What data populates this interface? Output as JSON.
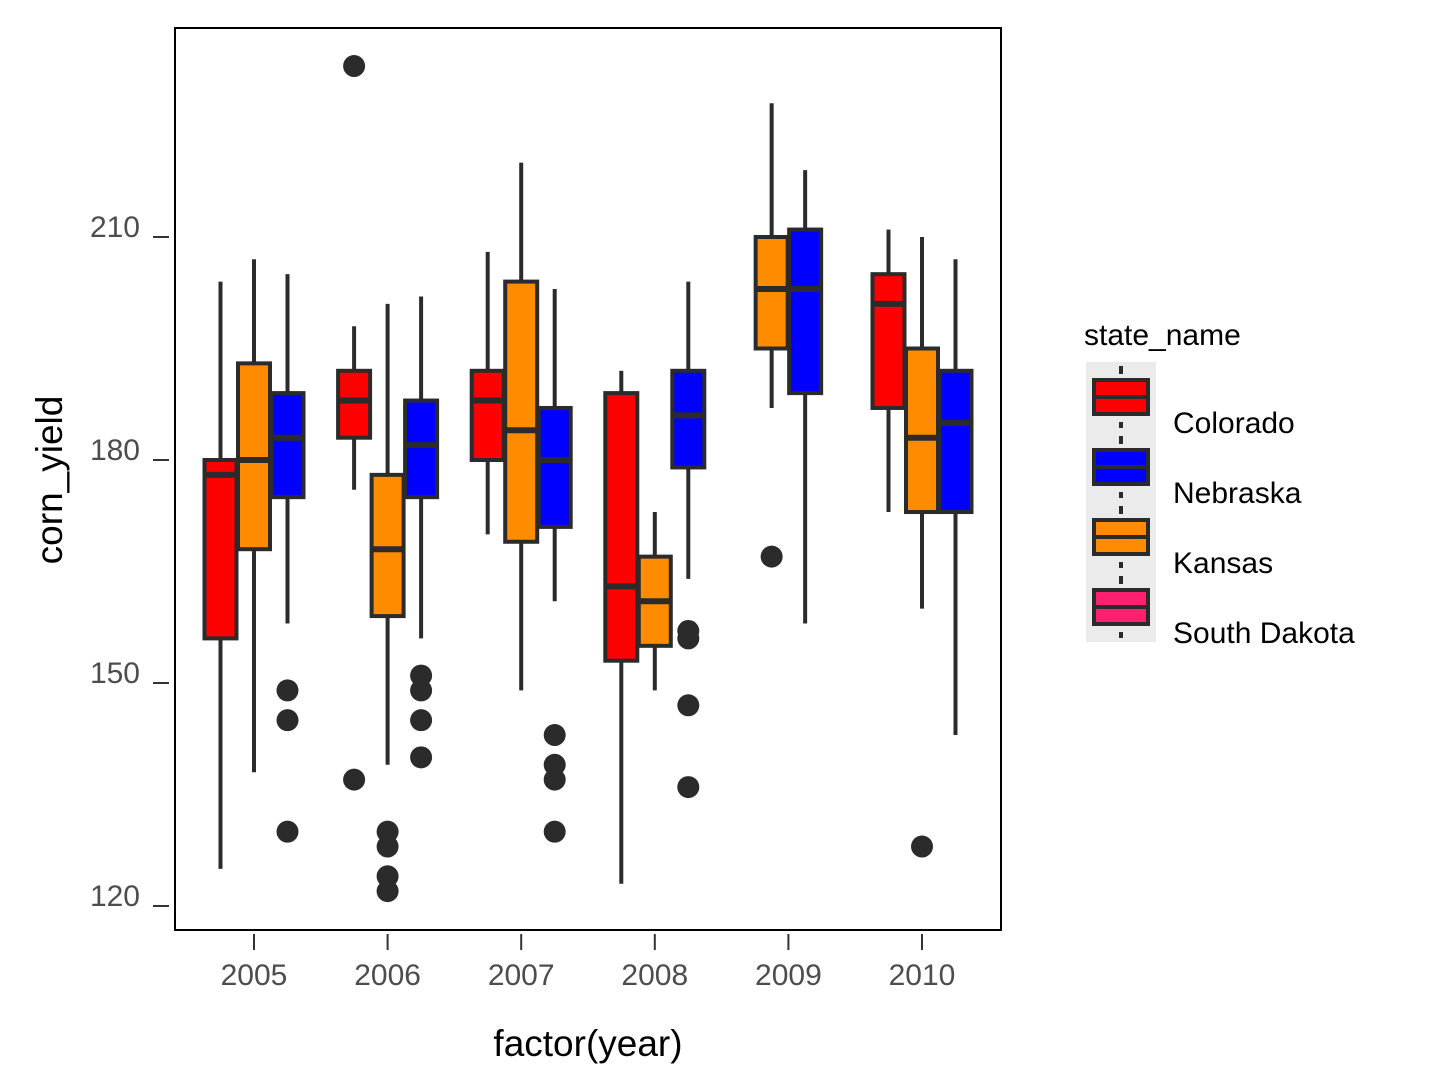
{
  "chart_data": {
    "type": "boxplot",
    "xlabel": "factor(year)",
    "ylabel": "corn_yield",
    "ylim": [
      117,
      238
    ],
    "yticks": [
      120,
      150,
      180,
      210
    ],
    "categories": [
      "2005",
      "2006",
      "2007",
      "2008",
      "2009",
      "2010"
    ],
    "legend": {
      "title": "state_name",
      "position": "right",
      "entries": [
        {
          "name": "Colorado",
          "color": "#ff0000"
        },
        {
          "name": "Nebraska",
          "color": "#0000ff"
        },
        {
          "name": "Kansas",
          "color": "#ff8c00"
        },
        {
          "name": "South Dakota",
          "color": "#ff1f6f"
        }
      ]
    },
    "grid": false,
    "boxes": [
      {
        "year": "2005",
        "state": "Colorado",
        "slot": 0,
        "min": 125,
        "q1": 156,
        "median": 178,
        "q3": 180,
        "max": 204,
        "outliers": []
      },
      {
        "year": "2005",
        "state": "Kansas",
        "slot": 1,
        "min": 138,
        "q1": 168,
        "median": 180,
        "q3": 193,
        "max": 207,
        "outliers": []
      },
      {
        "year": "2005",
        "state": "Nebraska",
        "slot": 2,
        "min": 158,
        "q1": 175,
        "median": 183,
        "q3": 189,
        "max": 205,
        "outliers": [
          149,
          145,
          130
        ]
      },
      {
        "year": "2006",
        "state": "Colorado",
        "slot": 0,
        "min": 176,
        "q1": 183,
        "median": 188,
        "q3": 192,
        "max": 198,
        "outliers": [
          233,
          137
        ]
      },
      {
        "year": "2006",
        "state": "Kansas",
        "slot": 1,
        "min": 139,
        "q1": 159,
        "median": 168,
        "q3": 178,
        "max": 201,
        "outliers": [
          130,
          128,
          124,
          122
        ]
      },
      {
        "year": "2006",
        "state": "Nebraska",
        "slot": 2,
        "min": 156,
        "q1": 175,
        "median": 182,
        "q3": 188,
        "max": 202,
        "outliers": [
          151,
          149,
          145,
          140
        ]
      },
      {
        "year": "2007",
        "state": "Colorado",
        "slot": 0,
        "min": 170,
        "q1": 180,
        "median": 188,
        "q3": 192,
        "max": 208,
        "outliers": []
      },
      {
        "year": "2007",
        "state": "Kansas",
        "slot": 1,
        "min": 149,
        "q1": 169,
        "median": 184,
        "q3": 204,
        "max": 220,
        "outliers": []
      },
      {
        "year": "2007",
        "state": "Nebraska",
        "slot": 2,
        "min": 161,
        "q1": 171,
        "median": 180,
        "q3": 187,
        "max": 203,
        "outliers": [
          143,
          139,
          137,
          130
        ]
      },
      {
        "year": "2008",
        "state": "Colorado",
        "slot": 0,
        "min": 123,
        "q1": 153,
        "median": 163,
        "q3": 189,
        "max": 192,
        "outliers": []
      },
      {
        "year": "2008",
        "state": "Kansas",
        "slot": 1,
        "min": 149,
        "q1": 155,
        "median": 161,
        "q3": 167,
        "max": 173,
        "outliers": []
      },
      {
        "year": "2008",
        "state": "Nebraska",
        "slot": 2,
        "min": 164,
        "q1": 179,
        "median": 186,
        "q3": 192,
        "max": 204,
        "outliers": [
          157,
          156,
          147,
          136
        ]
      },
      {
        "year": "2009",
        "state": "Kansas",
        "slot": 0.5,
        "min": 187,
        "q1": 195,
        "median": 203,
        "q3": 210,
        "max": 228,
        "outliers": [
          167
        ]
      },
      {
        "year": "2009",
        "state": "Nebraska",
        "slot": 1.5,
        "min": 158,
        "q1": 189,
        "median": 203,
        "q3": 211,
        "max": 219,
        "outliers": []
      },
      {
        "year": "2010",
        "state": "Colorado",
        "slot": 0,
        "min": 173,
        "q1": 187,
        "median": 201,
        "q3": 205,
        "max": 211,
        "outliers": []
      },
      {
        "year": "2010",
        "state": "Kansas",
        "slot": 1,
        "min": 160,
        "q1": 173,
        "median": 183,
        "q3": 195,
        "max": 210,
        "outliers": [
          128
        ]
      },
      {
        "year": "2010",
        "state": "Nebraska",
        "slot": 2,
        "min": 143,
        "q1": 173,
        "median": 185,
        "q3": 192,
        "max": 207,
        "outliers": []
      }
    ]
  }
}
